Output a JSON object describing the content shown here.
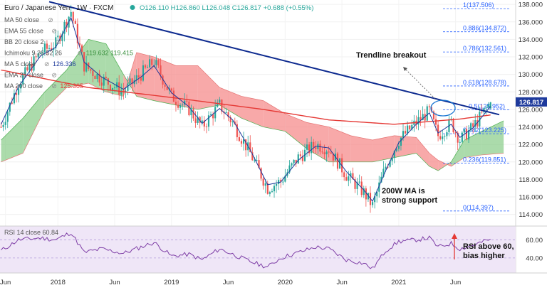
{
  "header": {
    "symbol": "Euro / Japanese Yen · 1W · FXCM",
    "ohlc": "O126.110  H126.860  L126.048  C126.817  +0.688 (+0.55%)"
  },
  "indicators": [
    {
      "label": "MA 50 close",
      "value": ""
    },
    {
      "label": "EMA 55 close",
      "value": ""
    },
    {
      "label": "BB 20 close 2",
      "value": ""
    },
    {
      "label": "Ichimoku 9 26 52 26",
      "value": "119.632  119.415"
    },
    {
      "label": "MA 5 close",
      "value": "126.336"
    },
    {
      "label": "EMA 21 close",
      "value": ""
    },
    {
      "label": "MA 200 close",
      "value": "125.365"
    }
  ],
  "price_label": "126.817",
  "annotations": {
    "trendline": "Trendline breakout",
    "ma_support_1": "200W MA is",
    "ma_support_2": "strong support",
    "rsi_1": "RSI above 60,",
    "rsi_2": "bias higher"
  },
  "rsi_header": "RSI 14 close  60.84",
  "colors": {
    "candle_up": "#26a69a",
    "candle_down": "#ef5350",
    "trendline": "#0d2a8f",
    "ma200": "#e53935",
    "ma5": "#1e3a9c",
    "cloud_bull": "#8fcf8f",
    "cloud_bear": "#f58c8c",
    "fib": "#2962ff",
    "rsi": "#7e3ea6",
    "rsi_bg": "#efe6f7"
  },
  "chart_data": {
    "type": "candlestick",
    "title": "Euro / Japanese Yen · 1W · FXCM",
    "ylim": [
      113,
      138.5
    ],
    "y_ticks": [
      114,
      116,
      118,
      120,
      122,
      124,
      126,
      128,
      130,
      132,
      134,
      136,
      138
    ],
    "x_ticks": [
      "Jun",
      "2018",
      "Jun",
      "2019",
      "Jun",
      "2020",
      "Jun",
      "2021",
      "Jun"
    ],
    "fib_levels": [
      {
        "label": "1(137.506)",
        "value": 137.506
      },
      {
        "label": "0.886(134.872)",
        "value": 134.872
      },
      {
        "label": "0.786(132.561)",
        "value": 132.561
      },
      {
        "label": "0.618(128.678)",
        "value": 128.678
      },
      {
        "label": "0.5(125.952)",
        "value": 125.952
      },
      {
        "label": "0.382(123.225)",
        "value": 123.225
      },
      {
        "label": "0.236(119.851)",
        "value": 119.851
      },
      {
        "label": "0(114.397)",
        "value": 114.397
      }
    ],
    "close_anchors": [
      [
        0,
        124.0
      ],
      [
        8,
        129.0
      ],
      [
        18,
        132.5
      ],
      [
        25,
        133.5
      ],
      [
        32,
        137.2
      ],
      [
        38,
        131.0
      ],
      [
        46,
        129.5
      ],
      [
        56,
        128.0
      ],
      [
        64,
        130.0
      ],
      [
        70,
        131.5
      ],
      [
        78,
        127.5
      ],
      [
        86,
        126.0
      ],
      [
        92,
        124.0
      ],
      [
        100,
        126.5
      ],
      [
        106,
        124.5
      ],
      [
        114,
        121.0
      ],
      [
        122,
        117.0
      ],
      [
        128,
        117.8
      ],
      [
        136,
        120.5
      ],
      [
        144,
        122.0
      ],
      [
        150,
        121.5
      ],
      [
        158,
        118.5
      ],
      [
        166,
        116.5
      ],
      [
        170,
        115.0
      ],
      [
        176,
        119.5
      ],
      [
        182,
        122.5
      ],
      [
        190,
        124.5
      ],
      [
        196,
        125.8
      ],
      [
        200,
        123.0
      ],
      [
        206,
        124.5
      ],
      [
        210,
        122.5
      ],
      [
        216,
        124.0
      ],
      [
        224,
        126.8
      ]
    ],
    "ma200_anchors": [
      [
        0,
        130.5
      ],
      [
        40,
        128.5
      ],
      [
        80,
        127.3
      ],
      [
        120,
        126.0
      ],
      [
        150,
        124.8
      ],
      [
        180,
        124.3
      ],
      [
        210,
        124.9
      ],
      [
        224,
        125.365
      ]
    ],
    "ma5_anchors": [
      [
        0,
        124.3
      ],
      [
        8,
        128.6
      ],
      [
        18,
        132.1
      ],
      [
        25,
        133.1
      ],
      [
        32,
        136.5
      ],
      [
        38,
        131.4
      ],
      [
        46,
        129.7
      ],
      [
        56,
        128.3
      ],
      [
        64,
        129.7
      ],
      [
        70,
        131.0
      ],
      [
        78,
        127.9
      ],
      [
        86,
        126.3
      ],
      [
        92,
        124.4
      ],
      [
        100,
        126.1
      ],
      [
        106,
        124.8
      ],
      [
        114,
        121.4
      ],
      [
        122,
        117.4
      ],
      [
        128,
        117.7
      ],
      [
        136,
        120.2
      ],
      [
        144,
        121.8
      ],
      [
        150,
        121.6
      ],
      [
        158,
        118.9
      ],
      [
        166,
        116.8
      ],
      [
        170,
        115.5
      ],
      [
        176,
        119.0
      ],
      [
        182,
        122.2
      ],
      [
        190,
        124.3
      ],
      [
        196,
        125.6
      ],
      [
        200,
        123.3
      ],
      [
        206,
        124.3
      ],
      [
        210,
        122.8
      ],
      [
        216,
        123.9
      ],
      [
        224,
        126.336
      ]
    ],
    "trendline": {
      "start": [
        22,
        138.3
      ],
      "end": [
        228,
        125.4
      ]
    },
    "cloud": [
      [
        0,
        122.5,
        120.0
      ],
      [
        10,
        125.0,
        121.0
      ],
      [
        20,
        128.0,
        126.0
      ],
      [
        30,
        130.5,
        128.5
      ],
      [
        40,
        134.0,
        129.0
      ],
      [
        48,
        133.5,
        128.0
      ],
      [
        56,
        130.0,
        127.5
      ],
      [
        62,
        127.5,
        132.5
      ],
      [
        70,
        127.0,
        132.0
      ],
      [
        80,
        126.5,
        131.0
      ],
      [
        90,
        126.0,
        131.0
      ],
      [
        100,
        126.5,
        128.5
      ],
      [
        110,
        125.0,
        127.5
      ],
      [
        120,
        124.0,
        127.0
      ],
      [
        130,
        123.5,
        125.5
      ],
      [
        140,
        121.5,
        124.5
      ],
      [
        150,
        120.0,
        124.0
      ],
      [
        160,
        120.0,
        123.0
      ],
      [
        170,
        120.0,
        122.5
      ],
      [
        180,
        120.5,
        123.0
      ],
      [
        190,
        121.0,
        122.8
      ],
      [
        196,
        119.5,
        121.0
      ],
      [
        200,
        119.0,
        120.2
      ],
      [
        206,
        120.0,
        119.5
      ],
      [
        212,
        122.5,
        120.5
      ],
      [
        220,
        123.5,
        120.8
      ],
      [
        230,
        124.7,
        121.0
      ]
    ],
    "rsi": {
      "ylim": [
        25,
        72
      ],
      "ticks": [
        40,
        60
      ],
      "value": 60.84,
      "anchors": [
        [
          0,
          48
        ],
        [
          8,
          60
        ],
        [
          18,
          62
        ],
        [
          25,
          60
        ],
        [
          32,
          68
        ],
        [
          38,
          46
        ],
        [
          46,
          50
        ],
        [
          56,
          45
        ],
        [
          64,
          52
        ],
        [
          70,
          57
        ],
        [
          78,
          42
        ],
        [
          86,
          44
        ],
        [
          92,
          38
        ],
        [
          100,
          50
        ],
        [
          106,
          44
        ],
        [
          114,
          36
        ],
        [
          122,
          30
        ],
        [
          128,
          40
        ],
        [
          136,
          46
        ],
        [
          144,
          52
        ],
        [
          150,
          50
        ],
        [
          158,
          38
        ],
        [
          166,
          34
        ],
        [
          170,
          28
        ],
        [
          176,
          48
        ],
        [
          182,
          58
        ],
        [
          190,
          60
        ],
        [
          196,
          62
        ],
        [
          200,
          52
        ],
        [
          206,
          56
        ],
        [
          210,
          50
        ],
        [
          216,
          54
        ],
        [
          224,
          60.84
        ]
      ]
    }
  }
}
